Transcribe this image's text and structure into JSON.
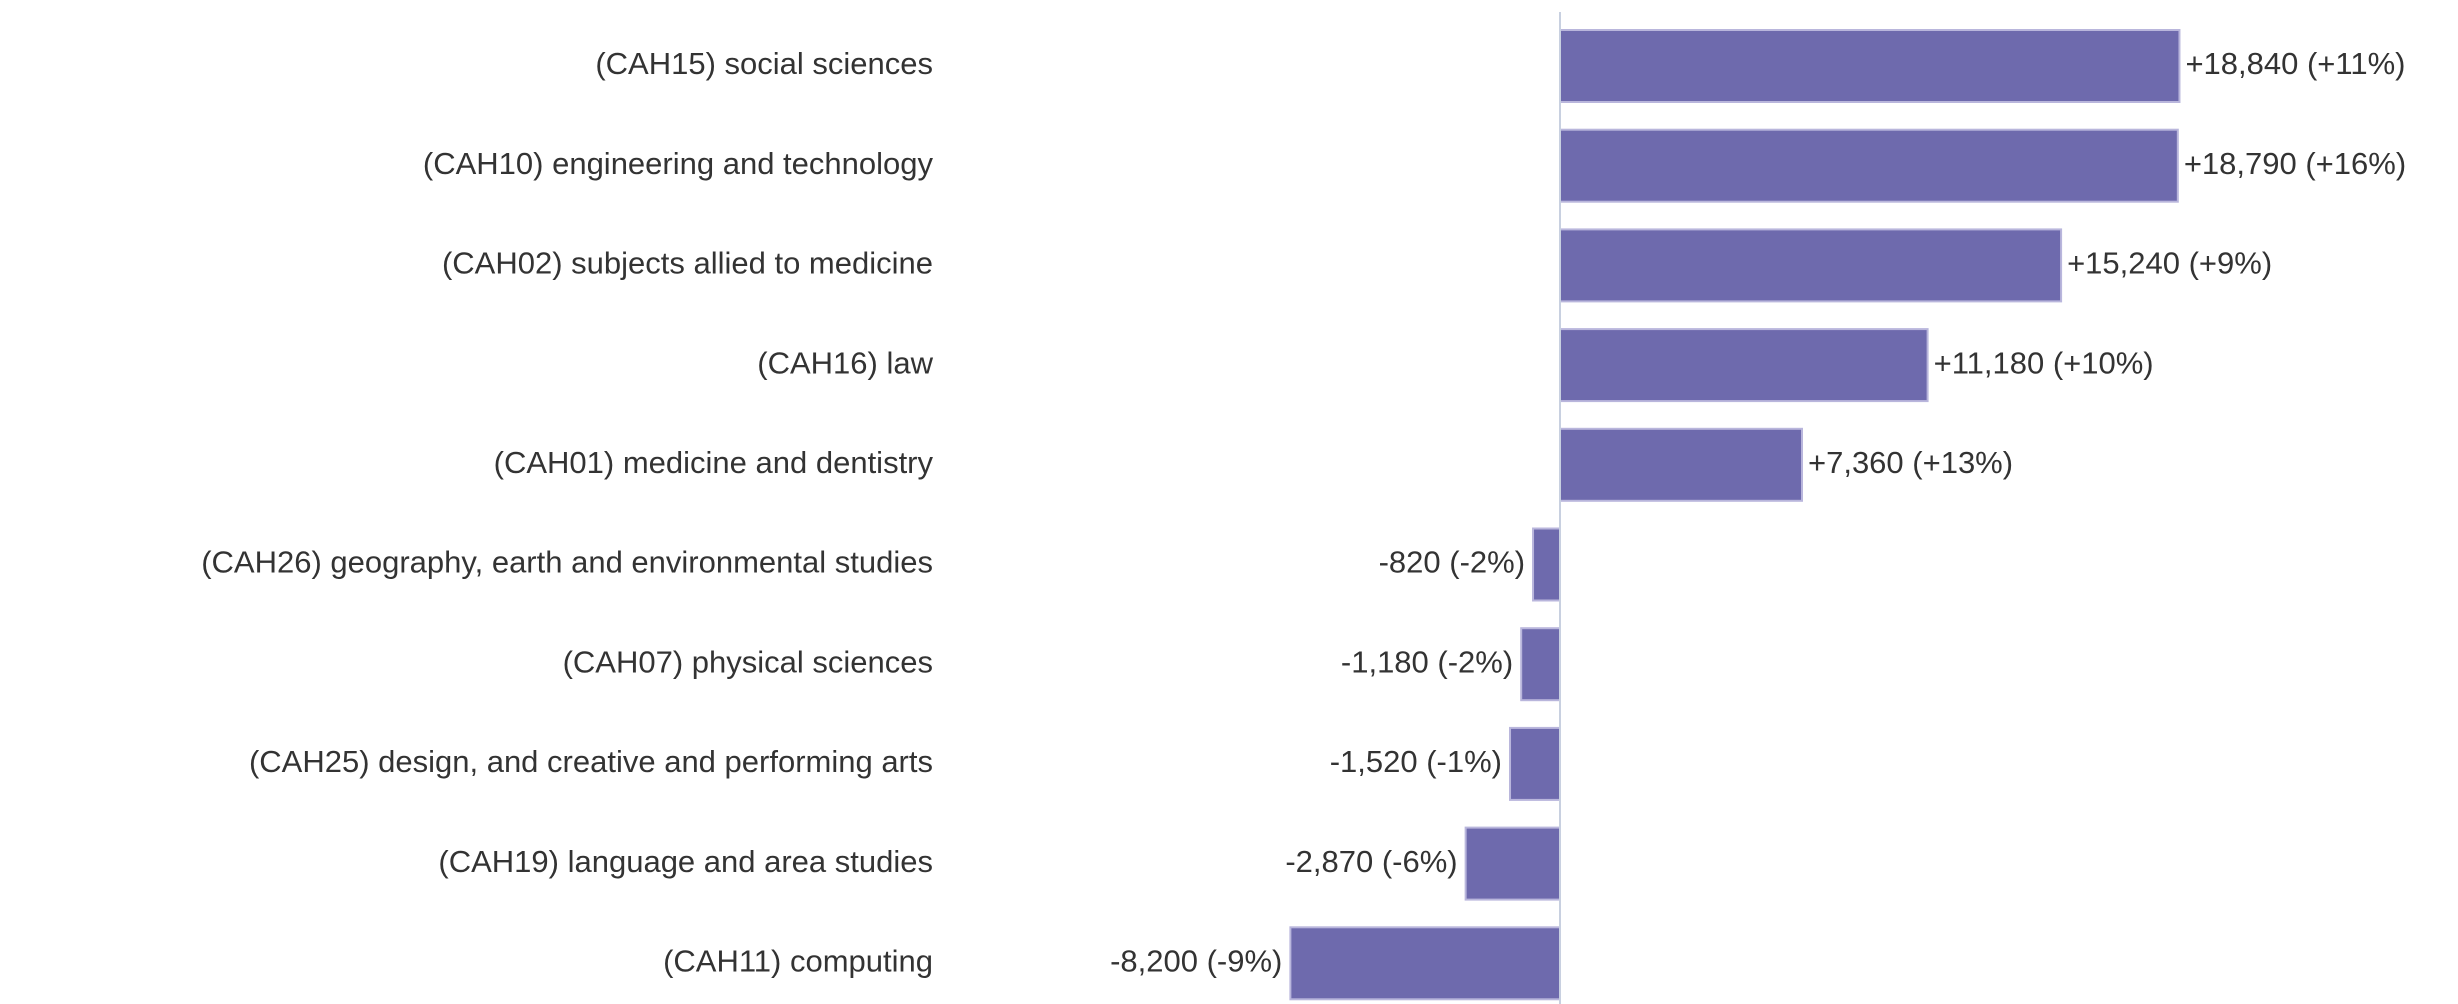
{
  "chart_data": {
    "type": "barh",
    "categories": [
      "(CAH15) social sciences",
      "(CAH10) engineering and technology",
      "(CAH02) subjects allied to medicine",
      "(CAH16) law",
      "(CAH01) medicine and dentistry",
      "(CAH26) geography, earth and environmental studies",
      "(CAH07) physical sciences",
      "(CAH25) design, and creative and performing arts",
      "(CAH19) language and area studies",
      "(CAH11) computing"
    ],
    "values": [
      18840,
      18790,
      15240,
      11180,
      7360,
      -820,
      -1180,
      -1520,
      -2870,
      -8200
    ],
    "value_labels": [
      "+18,840 (+11%)",
      "+18,790 (+16%)",
      "+15,240 (+9%)",
      "+11,180 (+10%)",
      "+7,360 (+13%)",
      "-820 (-2%)",
      "-1,180 (-2%)",
      "-1,520 (-1%)",
      "-2,870 (-6%)",
      "-8,200 (-9%)"
    ],
    "color": "#6e6aad"
  }
}
